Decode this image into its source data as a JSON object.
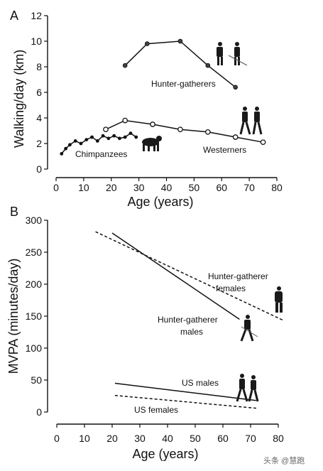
{
  "chart_data": [
    {
      "type": "line",
      "panel_label": "A",
      "ylabel": "Walking/day (km)",
      "xlabel": "Age (years)",
      "xlim": [
        0,
        80
      ],
      "ylim": [
        0,
        12
      ],
      "xticks": [
        "0",
        "10",
        "20",
        "30",
        "40",
        "50",
        "60",
        "70",
        "80"
      ],
      "yticks": [
        "0",
        "2",
        "4",
        "6",
        "8",
        "10",
        "12"
      ],
      "grid": false,
      "series": [
        {
          "name": "Hunter-gatherers",
          "marker": "filled-circle",
          "line": "solid",
          "x": [
            25,
            33,
            45,
            55,
            65
          ],
          "y": [
            8.1,
            9.8,
            10.0,
            8.1,
            6.4
          ]
        },
        {
          "name": "Westerners",
          "marker": "open-circle",
          "line": "solid",
          "x": [
            18,
            25,
            35,
            45,
            55,
            65,
            75
          ],
          "y": [
            3.1,
            3.8,
            3.5,
            3.1,
            2.9,
            2.5,
            2.1
          ]
        },
        {
          "name": "Chimpanzees",
          "marker": "filled-dot",
          "line": "solid",
          "x": [
            2,
            3.5,
            5,
            7,
            9,
            11,
            13,
            15,
            17,
            19,
            21,
            23,
            25,
            27,
            29
          ],
          "y": [
            1.2,
            1.6,
            1.9,
            2.2,
            2.0,
            2.3,
            2.5,
            2.2,
            2.6,
            2.4,
            2.6,
            2.4,
            2.5,
            2.8,
            2.5
          ]
        }
      ],
      "annotations": {
        "hunter": "Hunter-gatherers",
        "western": "Westerners",
        "chimp": "Chimpanzees"
      }
    },
    {
      "type": "line",
      "panel_label": "B",
      "ylabel": "MVPA (minutes/day)",
      "xlabel": "Age (years)",
      "xlim": [
        0,
        80
      ],
      "ylim": [
        0,
        300
      ],
      "xticks": [
        "0",
        "10",
        "20",
        "30",
        "40",
        "50",
        "60",
        "70",
        "80"
      ],
      "yticks": [
        "0",
        "50",
        "100",
        "150",
        "200",
        "250",
        "300"
      ],
      "grid": false,
      "series": [
        {
          "name": "Hunter-gatherer males",
          "line": "solid",
          "x": [
            20,
            66
          ],
          "y": [
            280,
            145
          ]
        },
        {
          "name": "Hunter-gatherer females",
          "line": "dashed",
          "x": [
            14,
            82
          ],
          "y": [
            282,
            143
          ]
        },
        {
          "name": "US males",
          "line": "solid",
          "x": [
            21,
            72
          ],
          "y": [
            45,
            18
          ]
        },
        {
          "name": "US females",
          "line": "dashed",
          "x": [
            21,
            72
          ],
          "y": [
            26,
            6
          ]
        }
      ],
      "annotations": {
        "hg_females": [
          "Hunter-gatherer",
          "females"
        ],
        "hg_males": [
          "Hunter-gatherer",
          "males"
        ],
        "us_males": "US males",
        "us_females": "US females"
      }
    }
  ],
  "watermark": "头条 @慧跑"
}
